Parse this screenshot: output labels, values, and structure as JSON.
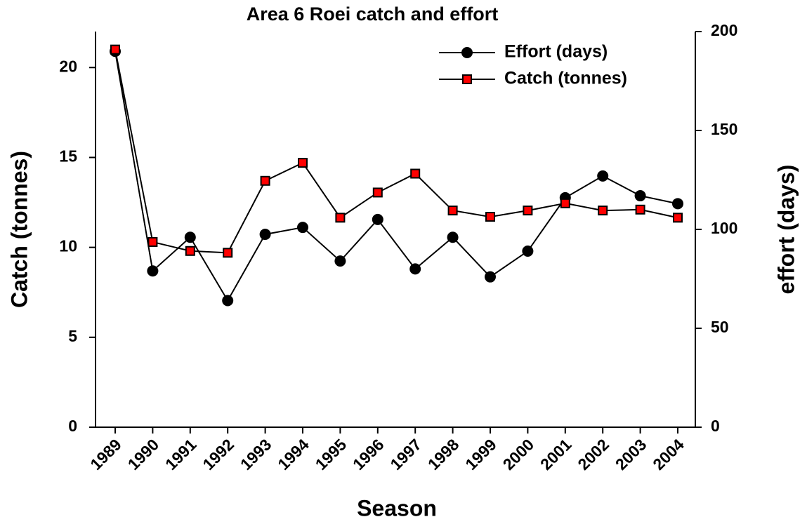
{
  "chart_data": {
    "type": "line",
    "title": "Area 6 Roei catch and effort",
    "x_label": "Season",
    "y_label": "Catch (tonnes)",
    "y2_label": "effort (days)",
    "categories": [
      "1989",
      "1990",
      "1991",
      "1992",
      "1993",
      "1994",
      "1995",
      "1996",
      "1997",
      "1998",
      "1999",
      "2000",
      "2001",
      "2002",
      "2003",
      "2004"
    ],
    "series": [
      {
        "name": "Effort (days)",
        "color": "#000000",
        "marker": "circle",
        "axis": "y2",
        "values": [
          190,
          79,
          96,
          64,
          97.5,
          101,
          84,
          105,
          80,
          96,
          76,
          89,
          116,
          127,
          117,
          113
        ]
      },
      {
        "name": "Catch (tonnes)",
        "color": "#ff0000",
        "marker": "square",
        "values": [
          21.0,
          10.3,
          9.8,
          9.7,
          13.7,
          14.7,
          11.65,
          13.05,
          14.1,
          12.05,
          11.7,
          12.05,
          12.45,
          12.05,
          12.1,
          11.65
        ]
      }
    ],
    "ylim": [
      0,
      22
    ],
    "yticks": [
      0,
      5,
      10,
      15,
      20
    ],
    "y2lim": [
      0,
      200
    ],
    "y2ticks": [
      0,
      50,
      100,
      150,
      200
    ],
    "legend": "top-right",
    "grid": false
  }
}
